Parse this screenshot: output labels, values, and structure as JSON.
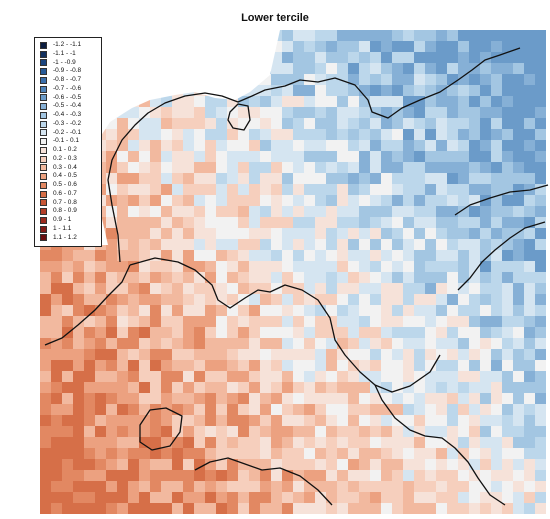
{
  "title": "Lower tercile",
  "legend": {
    "entries": [
      {
        "label": "-1.2 - -1.1",
        "color": "#0b1d40"
      },
      {
        "label": "-1.1 - -1",
        "color": "#12305e"
      },
      {
        "label": "-1 - -0.9",
        "color": "#1b457f"
      },
      {
        "label": "-0.9 - -0.8",
        "color": "#265a98"
      },
      {
        "label": "-0.8 - -0.7",
        "color": "#3a6fac"
      },
      {
        "label": "-0.7 - -0.6",
        "color": "#4f84bb"
      },
      {
        "label": "-0.6 - -0.5",
        "color": "#6b9bc9"
      },
      {
        "label": "-0.5 - -0.4",
        "color": "#86b0d6"
      },
      {
        "label": "-0.4 - -0.3",
        "color": "#a3c6e2"
      },
      {
        "label": "-0.3 - -0.2",
        "color": "#bcd7eb"
      },
      {
        "label": "-0.2 - -0.1",
        "color": "#d5e5f1"
      },
      {
        "label": "-0.1 - 0.1",
        "color": "#f2f2f2"
      },
      {
        "label": "0.1 - 0.2",
        "color": "#f6e2d9"
      },
      {
        "label": "0.2 - 0.3",
        "color": "#f6cfbd"
      },
      {
        "label": "0.3 - 0.4",
        "color": "#f2b99f"
      },
      {
        "label": "0.4 - 0.5",
        "color": "#eca180"
      },
      {
        "label": "0.5 - 0.6",
        "color": "#e28862"
      },
      {
        "label": "0.6 - 0.7",
        "color": "#d66f48"
      },
      {
        "label": "0.7 - 0.8",
        "color": "#c65636"
      },
      {
        "label": "0.8 - 0.9",
        "color": "#b33e28"
      },
      {
        "label": "0.9 - 1",
        "color": "#9c2b1f"
      },
      {
        "label": "1 - 1.1",
        "color": "#821b16"
      },
      {
        "label": "1.1 - 1.2",
        "color": "#690e0f"
      }
    ]
  }
}
